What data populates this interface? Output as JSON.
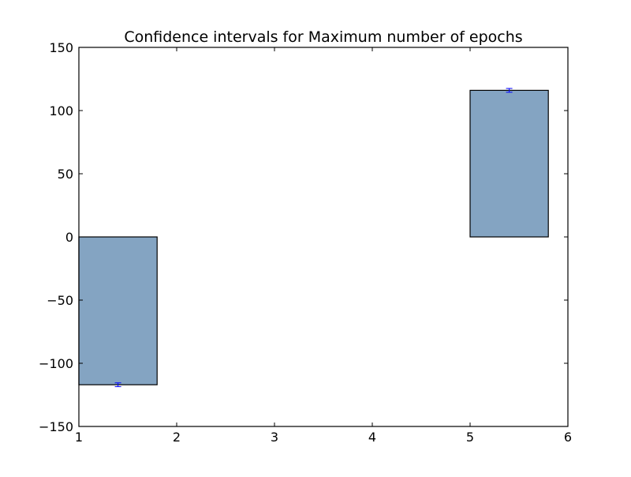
{
  "chart_data": {
    "type": "bar",
    "title": "Confidence intervals for Maximum number of epochs",
    "xlabel": "",
    "ylabel": "",
    "xlim": [
      1,
      6
    ],
    "ylim": [
      -150,
      150
    ],
    "xticks": [
      1,
      2,
      3,
      4,
      5,
      6
    ],
    "yticks": [
      -150,
      -100,
      -50,
      0,
      50,
      100,
      150
    ],
    "xtick_labels": [
      "1",
      "2",
      "3",
      "4",
      "5",
      "6"
    ],
    "ytick_labels": [
      "−150",
      "−100",
      "−50",
      "0",
      "50",
      "100",
      "150"
    ],
    "grid": false,
    "bars": [
      {
        "x_start": 1,
        "x_end": 1.8,
        "value": -117,
        "error": 1.5
      },
      {
        "x_start": 5,
        "x_end": 5.8,
        "value": 116,
        "error": 1.5
      }
    ],
    "colors": {
      "bar_fill": "#84a4c2",
      "bar_edge": "#000000",
      "error_bar": "#0000ff",
      "axes": "#000000"
    }
  }
}
